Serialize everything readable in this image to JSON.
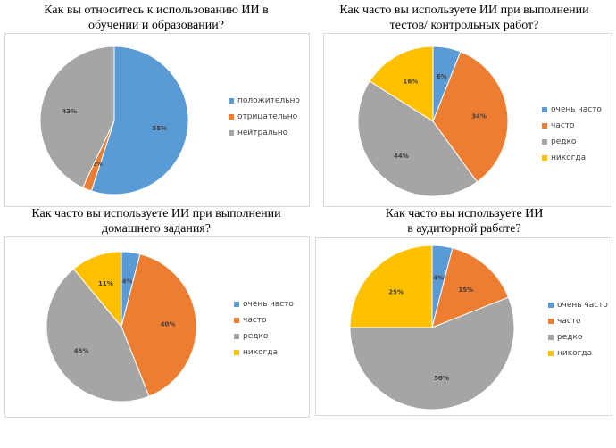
{
  "colors": {
    "blue": "#5b9bd5",
    "orange": "#ed7d31",
    "gray": "#a5a5a5",
    "yellow": "#ffc000"
  },
  "chart_data": [
    {
      "type": "pie",
      "title_lines": [
        "Как вы относитесь к использованию ИИ в",
        "обучении и образовании?"
      ],
      "categories": [
        "положительно",
        "отрицательно",
        "нейтрально"
      ],
      "values": [
        55,
        2,
        43
      ],
      "labels": [
        "55%",
        "2%",
        "43%"
      ],
      "legend": "right"
    },
    {
      "type": "pie",
      "title_lines": [
        "Как часто вы используете ИИ при выполнении",
        "тестов/ контрольных работ?"
      ],
      "categories": [
        "очень часто",
        "часто",
        "редко",
        "никогда"
      ],
      "values": [
        6,
        34,
        44,
        16
      ],
      "labels": [
        "6%",
        "34%",
        "44%",
        "16%"
      ],
      "legend": "right"
    },
    {
      "type": "pie",
      "title_lines": [
        "Как часто вы используете ИИ при выполнении",
        "домашнего задания?"
      ],
      "categories": [
        "очень часто",
        "часто",
        "редко",
        "никогда"
      ],
      "values": [
        4,
        40,
        45,
        11
      ],
      "labels": [
        "4%",
        "40%",
        "45%",
        "11%"
      ],
      "legend": "right"
    },
    {
      "type": "pie",
      "title_lines": [
        "Как часто вы используете ИИ",
        "в аудиторной работе?"
      ],
      "categories": [
        "очень часто",
        "часто",
        "редко",
        "никогда"
      ],
      "values": [
        4,
        15,
        56,
        25
      ],
      "labels": [
        "4%",
        "15%",
        "56%",
        "25%"
      ],
      "legend": "right"
    }
  ]
}
